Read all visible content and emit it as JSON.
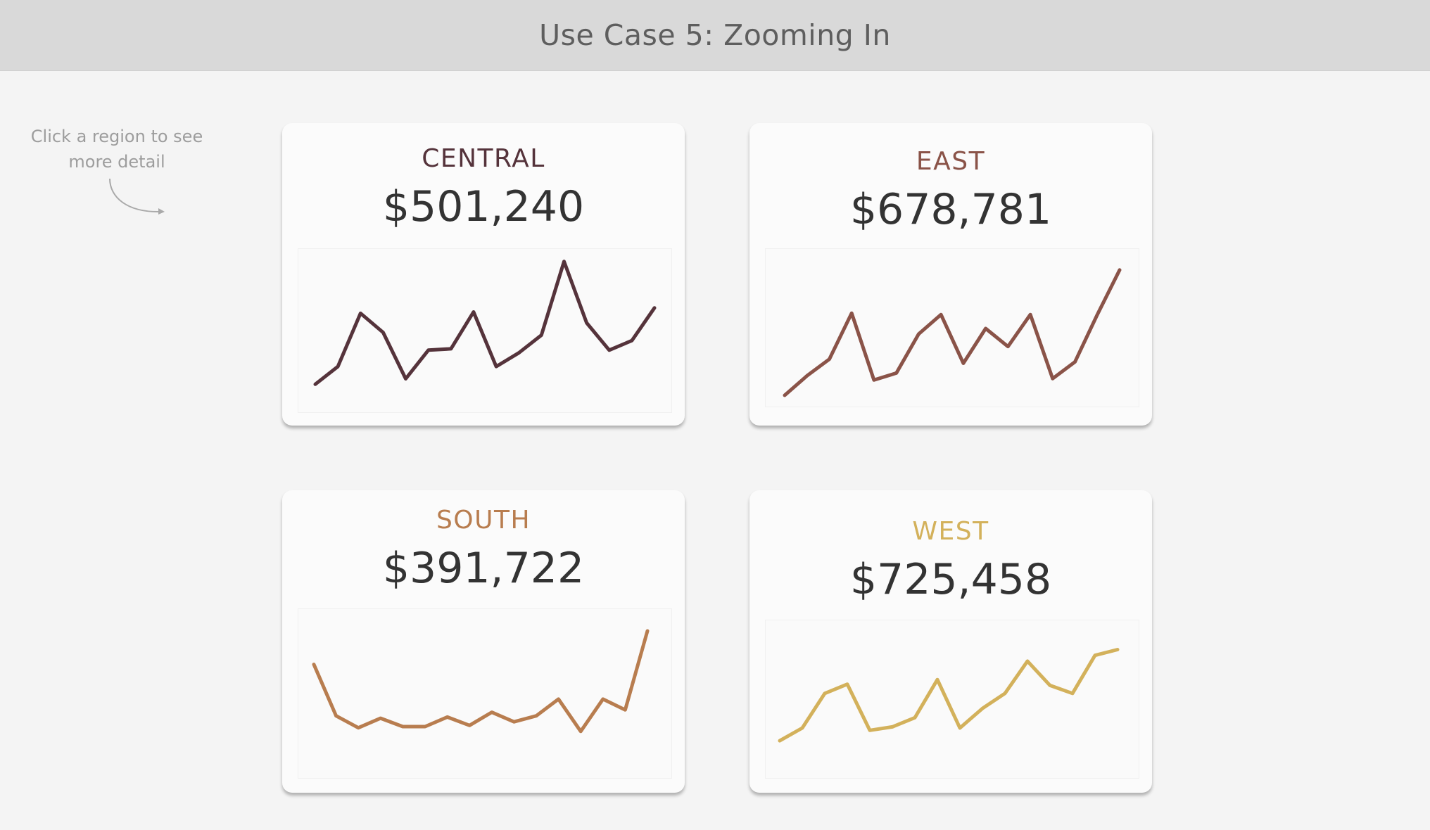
{
  "header": {
    "title": "Use Case 5: Zooming In"
  },
  "hint": {
    "text": "Click a region to see more detail"
  },
  "colors": {
    "central": "#55333b",
    "east": "#8a5348",
    "south": "#b87d4f",
    "west": "#d3b15b"
  },
  "cards": [
    {
      "region": "CENTRAL",
      "total": "$501,240",
      "trend": [
        5,
        18,
        57,
        43,
        9,
        30,
        31,
        58,
        18,
        28,
        41,
        95,
        50,
        30,
        37,
        61
      ]
    },
    {
      "region": "EAST",
      "total": "$678,781",
      "trend": [
        2,
        16,
        28,
        61,
        13,
        18,
        46,
        60,
        25,
        50,
        37,
        60,
        14,
        26,
        60,
        92
      ]
    },
    {
      "region": "SOUTH",
      "total": "$391,722",
      "trend": [
        62,
        19,
        9,
        17,
        10,
        10,
        18,
        11,
        22,
        14,
        19,
        33,
        6,
        33,
        24,
        90
      ]
    },
    {
      "region": "WEST",
      "total": "$725,458",
      "trend": [
        3,
        14,
        44,
        52,
        12,
        15,
        23,
        56,
        14,
        31,
        44,
        72,
        51,
        44,
        77,
        82
      ]
    }
  ]
}
